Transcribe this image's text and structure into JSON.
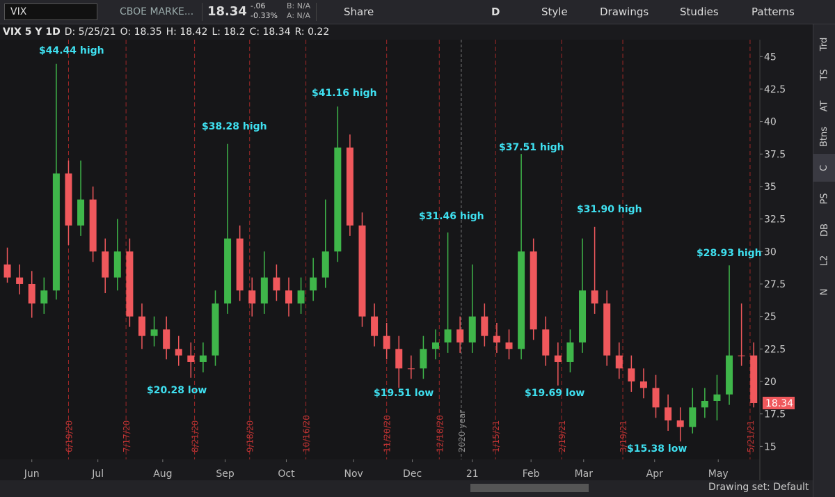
{
  "toolbar": {
    "symbol": "VIX",
    "description": "CBOE MARKE...",
    "last": "18.34",
    "change": "-.06",
    "change_pct": "-0.33%",
    "bid": "B: N/A",
    "ask": "A: N/A",
    "buttons": [
      "Share",
      "D",
      "Style",
      "Drawings",
      "Studies",
      "Patterns"
    ]
  },
  "info": {
    "label": "VIX 5 Y 1D",
    "date": "D: 5/25/21",
    "open": "O: 18.35",
    "high": "H: 18.42",
    "low": "L: 18.2",
    "close": "C: 18.34",
    "range": "R: 0.22"
  },
  "sidebar": [
    "Trd",
    "TS",
    "AT",
    "Btns",
    "C",
    "PS",
    "DB",
    "L2",
    "N"
  ],
  "footer": {
    "drawing_set": "Drawing set: Default"
  },
  "chart_data": {
    "type": "candlestick",
    "open": [
      29,
      28,
      27.5,
      26,
      27,
      36,
      32,
      34,
      30,
      28,
      30,
      25,
      23.5,
      24,
      22.5,
      22,
      21.5,
      22,
      26,
      31,
      27,
      26,
      28,
      27,
      26,
      27,
      28,
      30,
      38,
      32,
      25,
      23.5,
      22.5,
      21,
      21,
      22.5,
      23,
      24,
      23,
      25,
      23.5,
      23,
      22.5,
      30,
      24,
      22,
      21.5,
      23,
      27,
      26,
      22,
      21,
      20,
      19.5,
      18,
      17,
      16.5,
      18,
      18.5,
      19,
      22,
      22
    ],
    "high": [
      30.3,
      29,
      28.5,
      28,
      44.44,
      37,
      37,
      35,
      31,
      32.5,
      31,
      26,
      25,
      25,
      23.5,
      23,
      23,
      27,
      38.28,
      32,
      28,
      30,
      29,
      28,
      28,
      29.5,
      34,
      41.16,
      39,
      33,
      26,
      24.5,
      23.5,
      22,
      23.5,
      24,
      31.46,
      25,
      29,
      26,
      24.5,
      24,
      37.51,
      31,
      25,
      23,
      24,
      31,
      31.9,
      27,
      23,
      22,
      21,
      20.5,
      19,
      18,
      19.5,
      19.5,
      20.5,
      28.93,
      26,
      23
    ],
    "low": [
      27.6,
      26.7,
      24.9,
      25.2,
      26.3,
      30.5,
      31.2,
      29.2,
      26.8,
      27,
      24.2,
      22.5,
      22.7,
      21.7,
      21.2,
      20.28,
      20.7,
      21.2,
      25.2,
      26.2,
      25,
      25.2,
      26.2,
      25,
      25.2,
      26.2,
      27.2,
      29.2,
      31.2,
      24.2,
      22.7,
      21.7,
      19.51,
      20.2,
      20.2,
      21.7,
      22.2,
      22.2,
      22.2,
      22.7,
      22.2,
      21.7,
      21.7,
      23.2,
      21.2,
      19.69,
      20.7,
      22.2,
      25.2,
      21.2,
      20.2,
      19.2,
      18.7,
      17.2,
      16.2,
      15.38,
      16,
      17.2,
      17,
      18.2,
      21.2,
      18
    ],
    "close": [
      28,
      27.5,
      26,
      27,
      36,
      32,
      34,
      30,
      28,
      30,
      25,
      23.5,
      24,
      22.5,
      22,
      21.5,
      22,
      26,
      31,
      27,
      26,
      28,
      27,
      26,
      27,
      28,
      30,
      38,
      32,
      25,
      23.5,
      22.5,
      21,
      21,
      22.5,
      23,
      24,
      23,
      25,
      23.5,
      23,
      22.5,
      30,
      24,
      22,
      21.5,
      23,
      27,
      26,
      22,
      21,
      20,
      19.5,
      18,
      17,
      16.5,
      18,
      18.5,
      19,
      22,
      22,
      18.34
    ],
    "up_color": "#3fb64a",
    "down_color": "#f0585c",
    "xlim": [
      -0.6,
      61.5
    ],
    "xticks": [
      {
        "value": 2.0,
        "label": "Jun"
      },
      {
        "value": 7.4,
        "label": "Jul"
      },
      {
        "value": 12.7,
        "label": "Aug"
      },
      {
        "value": 17.8,
        "label": "Sep"
      },
      {
        "value": 22.8,
        "label": "Oct"
      },
      {
        "value": 28.3,
        "label": "Nov"
      },
      {
        "value": 33.1,
        "label": "Dec"
      },
      {
        "value": 38.0,
        "label": "21"
      },
      {
        "value": 42.8,
        "label": "Feb"
      },
      {
        "value": 47.1,
        "label": "Mar"
      },
      {
        "value": 52.9,
        "label": "Apr"
      },
      {
        "value": 58.1,
        "label": "May"
      }
    ],
    "ylim": [
      14,
      46.3
    ],
    "yticks": [
      15,
      17.5,
      20,
      22.5,
      25,
      27.5,
      30,
      32.5,
      35,
      37.5,
      40,
      42.5,
      45
    ],
    "expirations": [
      {
        "value": 5.0,
        "label": "6/19/20"
      },
      {
        "value": 9.7,
        "label": "7/17/20"
      },
      {
        "value": 15.3,
        "label": "8/21/20"
      },
      {
        "value": 19.8,
        "label": "9/18/20"
      },
      {
        "value": 24.4,
        "label": "10/16/20"
      },
      {
        "value": 31.0,
        "label": "11/20/20"
      },
      {
        "value": 35.3,
        "label": "12/18/20"
      },
      {
        "value": 39.9,
        "label": "1/15/21"
      },
      {
        "value": 45.3,
        "label": "2/19/21"
      },
      {
        "value": 50.3,
        "label": "3/19/21"
      },
      {
        "value": 60.7,
        "label": "5/21/21"
      }
    ],
    "year_marker": {
      "value": 37.1,
      "label": "2020 year"
    },
    "annotations": [
      "$44.44 high",
      "$38.28 high",
      "$41.16 high",
      "$31.46 high",
      "$37.51 high",
      "$31.90 high",
      "$28.93 high",
      "$20.28 low",
      "$19.51 low",
      "$19.69 low",
      "$15.38 low"
    ]
  }
}
